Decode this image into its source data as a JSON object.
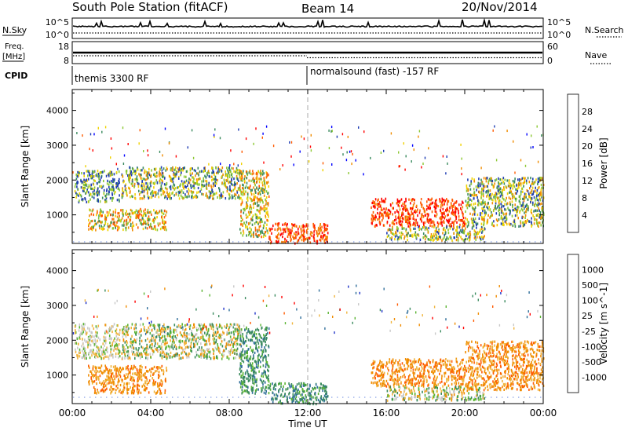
{
  "header": {
    "station": "South Pole Station (fitACF)",
    "beam": "Beam 14",
    "date": "20/Nov/2014"
  },
  "nsky_panel": {
    "label": "N.Sky",
    "left_ticks": [
      "10^5",
      "10^0"
    ],
    "right_ticks": [
      "10^5",
      "10^0"
    ],
    "right_label": "N.Search",
    "series": [
      {
        "name": "N.Sky",
        "style": "solid"
      },
      {
        "name": "N.Search",
        "style": "dotted"
      }
    ]
  },
  "freq_panel": {
    "label_line1": "Freq.",
    "label_line2": "[MHz]",
    "left_ticks": [
      "18",
      "8"
    ],
    "right_ticks": [
      "60",
      "0"
    ],
    "right_label": "Nave",
    "series": [
      {
        "name": "Freq.",
        "style": "solid"
      },
      {
        "name": "Nave",
        "style": "dotted"
      }
    ]
  },
  "cpid_panel": {
    "label": "CPID",
    "segments": [
      {
        "text": "themis 3300 RF",
        "start_hour": 0
      },
      {
        "text": "normalsound (fast) -157 RF",
        "start_hour": 12
      }
    ]
  },
  "chart_data": [
    {
      "type": "heatmap",
      "name": "power",
      "ylabel": "Slant Range [km]",
      "ylim": [
        180,
        4600
      ],
      "yticks": [
        1000,
        2000,
        3000,
        4000
      ],
      "xlim": [
        0,
        24
      ],
      "colorbar": {
        "label": "Power [dB]",
        "tick_labels": [
          "4",
          "8",
          "12",
          "16",
          "20",
          "24",
          "28"
        ],
        "colors": [
          "#0000ff",
          "#1e3cb4",
          "#3a8a5e",
          "#8cc832",
          "#f0d200",
          "#f08c00",
          "#ff5a00",
          "#ff0000"
        ]
      },
      "echo_regions": [
        {
          "t": [
            0.1,
            2.4
          ],
          "r": [
            1400,
            2300
          ],
          "level": "low-mid",
          "note": "blue/green patches with some red"
        },
        {
          "t": [
            0.8,
            4.8
          ],
          "r": [
            600,
            1200
          ],
          "level": "mid-high"
        },
        {
          "t": [
            2.5,
            8.6
          ],
          "r": [
            1500,
            2400
          ],
          "level": "mid"
        },
        {
          "t": [
            8.5,
            10.0
          ],
          "r": [
            400,
            2300
          ],
          "level": "mid-high"
        },
        {
          "t": [
            10.0,
            13.0
          ],
          "r": [
            200,
            800
          ],
          "level": "high",
          "note": "strong red near-range band"
        },
        {
          "t": [
            15.2,
            20.0
          ],
          "r": [
            700,
            1500
          ],
          "level": "high"
        },
        {
          "t": [
            16.0,
            21.0
          ],
          "r": [
            300,
            700
          ],
          "level": "mid"
        },
        {
          "t": [
            20.0,
            24.0
          ],
          "r": [
            700,
            2100
          ],
          "level": "mid"
        }
      ]
    },
    {
      "type": "heatmap",
      "name": "velocity",
      "ylabel": "Slant Range [km]",
      "ylim": [
        180,
        4600
      ],
      "yticks": [
        1000,
        2000,
        3000,
        4000
      ],
      "xlim": [
        0,
        24
      ],
      "xticks": [
        "00:00",
        "04:00",
        "08:00",
        "12:00",
        "16:00",
        "20:00",
        "00:00"
      ],
      "xlabel": "Time UT",
      "colorbar": {
        "label": "Velocity [m s^-1]",
        "tick_labels": [
          "1000",
          "500",
          "100",
          "25",
          "-25",
          "-100",
          "-500",
          "-1000"
        ],
        "colors": [
          "#1e32c8",
          "#2f6e9a",
          "#3a8a5e",
          "#5ab432",
          "#c8c8c8",
          "#f0b43c",
          "#f08c00",
          "#ff5a00",
          "#ff0000"
        ]
      },
      "echo_regions": [
        {
          "t": [
            0.1,
            2.4
          ],
          "r": [
            1500,
            2500
          ],
          "level": "near-zero",
          "note": "grey"
        },
        {
          "t": [
            0.8,
            4.8
          ],
          "r": [
            500,
            1300
          ],
          "level": "negative",
          "note": "orange"
        },
        {
          "t": [
            2.5,
            8.6
          ],
          "r": [
            1500,
            2500
          ],
          "level": "mixed"
        },
        {
          "t": [
            8.5,
            10.0
          ],
          "r": [
            500,
            2400
          ],
          "level": "positive",
          "note": "blue/green"
        },
        {
          "t": [
            10.0,
            13.0
          ],
          "r": [
            200,
            800
          ],
          "level": "positive",
          "note": "green band"
        },
        {
          "t": [
            15.2,
            20.0
          ],
          "r": [
            700,
            1500
          ],
          "level": "negative",
          "note": "orange"
        },
        {
          "t": [
            16.0,
            21.0
          ],
          "r": [
            300,
            700
          ],
          "level": "mixed"
        },
        {
          "t": [
            20.0,
            24.0
          ],
          "r": [
            600,
            2000
          ],
          "level": "negative",
          "note": "orange/red"
        }
      ]
    }
  ]
}
